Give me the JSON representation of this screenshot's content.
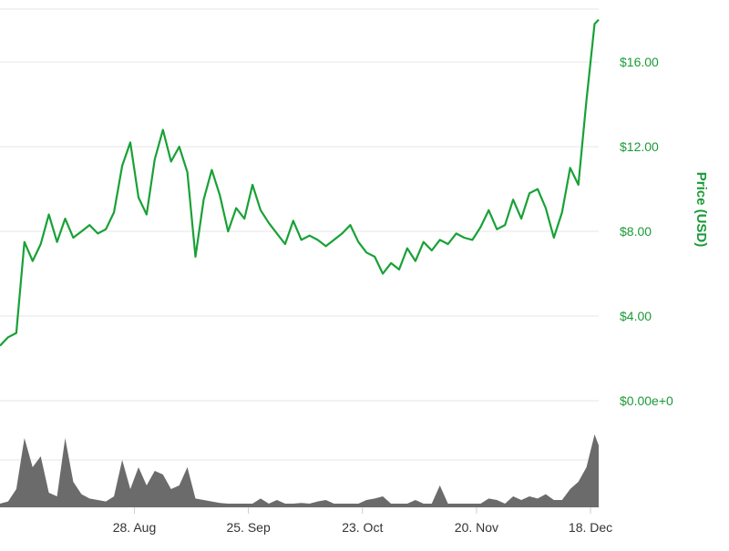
{
  "colors": {
    "price_line": "#18a136",
    "price_axis_text": "#1a9a37",
    "volume_fill": "#6b6b6b",
    "gridline": "#e6e6e6",
    "x_axis_text": "#333333"
  },
  "chart_data": [
    {
      "type": "line",
      "title": "",
      "xlabel": "",
      "ylabel": "Price (USD)",
      "ylim": [
        0,
        18.5
      ],
      "y_axis_side": "right",
      "yticks": [
        0,
        4,
        8,
        12,
        16
      ],
      "ytick_labels": [
        "$0.00e+0",
        "$4.00",
        "$8.00",
        "$12.00",
        "$16.00"
      ],
      "x_range": [
        "2017-07-26",
        "2017-12-20"
      ],
      "grid": true,
      "legend": "none",
      "series": [
        {
          "x": [
            "2017-07-26",
            "2017-07-28",
            "2017-07-30",
            "2017-08-01",
            "2017-08-03",
            "2017-08-05",
            "2017-08-07",
            "2017-08-09",
            "2017-08-11",
            "2017-08-13",
            "2017-08-15",
            "2017-08-17",
            "2017-08-19",
            "2017-08-21",
            "2017-08-23",
            "2017-08-25",
            "2017-08-27",
            "2017-08-29",
            "2017-08-31",
            "2017-09-02",
            "2017-09-04",
            "2017-09-06",
            "2017-09-08",
            "2017-09-10",
            "2017-09-12",
            "2017-09-14",
            "2017-09-16",
            "2017-09-18",
            "2017-09-20",
            "2017-09-22",
            "2017-09-24",
            "2017-09-26",
            "2017-09-28",
            "2017-09-30",
            "2017-10-02",
            "2017-10-04",
            "2017-10-06",
            "2017-10-08",
            "2017-10-10",
            "2017-10-12",
            "2017-10-14",
            "2017-10-16",
            "2017-10-18",
            "2017-10-20",
            "2017-10-22",
            "2017-10-24",
            "2017-10-26",
            "2017-10-28",
            "2017-10-30",
            "2017-11-01",
            "2017-11-03",
            "2017-11-05",
            "2017-11-07",
            "2017-11-09",
            "2017-11-11",
            "2017-11-13",
            "2017-11-15",
            "2017-11-17",
            "2017-11-19",
            "2017-11-21",
            "2017-11-23",
            "2017-11-25",
            "2017-11-27",
            "2017-11-29",
            "2017-12-01",
            "2017-12-03",
            "2017-12-05",
            "2017-12-07",
            "2017-12-09",
            "2017-12-11",
            "2017-12-13",
            "2017-12-15",
            "2017-12-17",
            "2017-12-19",
            "2017-12-20"
          ],
          "y": [
            2.6,
            3.0,
            3.2,
            7.5,
            6.6,
            7.4,
            8.8,
            7.5,
            8.6,
            7.7,
            8.0,
            8.3,
            7.9,
            8.1,
            8.9,
            11.1,
            12.2,
            9.6,
            8.8,
            11.4,
            12.8,
            11.3,
            12.0,
            10.8,
            6.8,
            9.5,
            10.9,
            9.7,
            8.0,
            9.1,
            8.6,
            10.2,
            9.0,
            8.4,
            7.9,
            7.4,
            8.5,
            7.6,
            7.8,
            7.6,
            7.3,
            7.6,
            7.9,
            8.3,
            7.5,
            7.0,
            6.8,
            6.0,
            6.5,
            6.2,
            7.2,
            6.6,
            7.5,
            7.1,
            7.6,
            7.4,
            7.9,
            7.7,
            7.6,
            8.2,
            9.0,
            8.1,
            8.3,
            9.5,
            8.6,
            9.8,
            10.0,
            9.1,
            7.7,
            8.9,
            11.0,
            10.2,
            14.2,
            17.8,
            18.0
          ]
        }
      ]
    },
    {
      "type": "area",
      "title": "",
      "xlabel": "",
      "ylabel": "",
      "x_axis": {
        "tick_labels": [
          "28. Aug",
          "25. Sep",
          "23. Oct",
          "20. Nov",
          "18. Dec"
        ],
        "tick_dates": [
          "2017-08-28",
          "2017-09-25",
          "2017-10-23",
          "2017-11-20",
          "2017-12-18"
        ]
      },
      "grid": true,
      "legend": "none",
      "series": [
        {
          "x": [
            "2017-07-26",
            "2017-07-28",
            "2017-07-30",
            "2017-08-01",
            "2017-08-03",
            "2017-08-05",
            "2017-08-07",
            "2017-08-09",
            "2017-08-11",
            "2017-08-13",
            "2017-08-15",
            "2017-08-17",
            "2017-08-19",
            "2017-08-21",
            "2017-08-23",
            "2017-08-25",
            "2017-08-27",
            "2017-08-29",
            "2017-08-31",
            "2017-09-02",
            "2017-09-04",
            "2017-09-06",
            "2017-09-08",
            "2017-09-10",
            "2017-09-12",
            "2017-09-14",
            "2017-09-16",
            "2017-09-18",
            "2017-09-20",
            "2017-09-22",
            "2017-09-24",
            "2017-09-26",
            "2017-09-28",
            "2017-09-30",
            "2017-10-02",
            "2017-10-04",
            "2017-10-06",
            "2017-10-08",
            "2017-10-10",
            "2017-10-12",
            "2017-10-14",
            "2017-10-16",
            "2017-10-18",
            "2017-10-20",
            "2017-10-22",
            "2017-10-24",
            "2017-10-26",
            "2017-10-28",
            "2017-10-30",
            "2017-11-01",
            "2017-11-03",
            "2017-11-05",
            "2017-11-07",
            "2017-11-09",
            "2017-11-11",
            "2017-11-13",
            "2017-11-15",
            "2017-11-17",
            "2017-11-19",
            "2017-11-21",
            "2017-11-23",
            "2017-11-25",
            "2017-11-27",
            "2017-11-29",
            "2017-12-01",
            "2017-12-03",
            "2017-12-05",
            "2017-12-07",
            "2017-12-09",
            "2017-12-11",
            "2017-12-13",
            "2017-12-15",
            "2017-12-17",
            "2017-12-19",
            "2017-12-20"
          ],
          "y": [
            0.05,
            0.08,
            0.25,
            0.95,
            0.55,
            0.7,
            0.2,
            0.15,
            0.95,
            0.35,
            0.18,
            0.12,
            0.1,
            0.08,
            0.15,
            0.65,
            0.25,
            0.55,
            0.3,
            0.5,
            0.45,
            0.25,
            0.3,
            0.55,
            0.12,
            0.1,
            0.08,
            0.06,
            0.05,
            0.05,
            0.05,
            0.05,
            0.12,
            0.05,
            0.1,
            0.05,
            0.05,
            0.06,
            0.05,
            0.08,
            0.1,
            0.05,
            0.05,
            0.05,
            0.05,
            0.1,
            0.12,
            0.15,
            0.05,
            0.05,
            0.05,
            0.1,
            0.05,
            0.05,
            0.3,
            0.05,
            0.05,
            0.05,
            0.05,
            0.05,
            0.12,
            0.1,
            0.05,
            0.15,
            0.1,
            0.15,
            0.12,
            0.18,
            0.1,
            0.1,
            0.25,
            0.35,
            0.55,
            1.0,
            0.85
          ]
        }
      ]
    }
  ]
}
